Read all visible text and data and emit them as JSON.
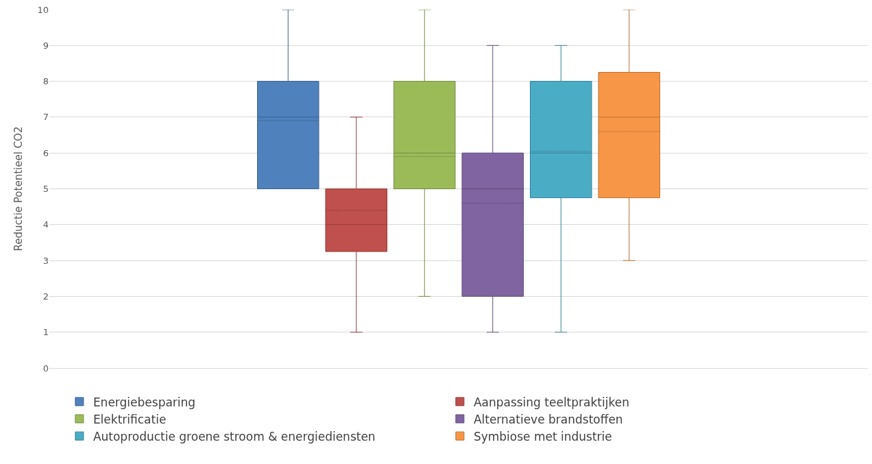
{
  "chart_data": {
    "type": "box",
    "ylabel": "Reductie Potentieel CO2",
    "categories": [
      null
    ],
    "ylim": [
      0,
      10
    ],
    "yticks": [
      0,
      1,
      2,
      3,
      4,
      5,
      6,
      7,
      8,
      9,
      10
    ],
    "grid": "y",
    "legend": "bottom",
    "tick_labels": "y",
    "series": [
      {
        "name": "Energiebesparing",
        "color": "#4f81bd",
        "boxes": [
          {
            "low": 5,
            "q1": 5,
            "median": 7,
            "q3": 8,
            "high": 10,
            "mean": 6.9
          }
        ]
      },
      {
        "name": "Aanpassing teeltpraktijken",
        "color": "#c0504d",
        "boxes": [
          {
            "low": 1,
            "q1": 3.25,
            "median": 4,
            "q3": 5,
            "high": 7,
            "mean": 4.4
          }
        ]
      },
      {
        "name": "Elektrificatie",
        "color": "#9bbb59",
        "boxes": [
          {
            "low": 2,
            "q1": 5,
            "median": 6,
            "q3": 8,
            "high": 10,
            "mean": 5.9
          }
        ]
      },
      {
        "name": "Alternatieve brandstoffen",
        "color": "#8064a2",
        "boxes": [
          {
            "low": 1,
            "q1": 2,
            "median": 5,
            "q3": 6,
            "high": 9,
            "mean": 4.6
          }
        ]
      },
      {
        "name": "Autoproductie groene stroom & energiediensten",
        "color": "#4bacc6",
        "boxes": [
          {
            "low": 1,
            "q1": 4.75,
            "median": 6,
            "q3": 8,
            "high": 9,
            "mean": 6.05
          }
        ]
      },
      {
        "name": "Symbiose met industrie",
        "color": "#f79646",
        "boxes": [
          {
            "low": 3,
            "q1": 4.75,
            "median": 7,
            "q3": 8.25,
            "high": 10,
            "mean": 6.6
          }
        ]
      }
    ]
  }
}
